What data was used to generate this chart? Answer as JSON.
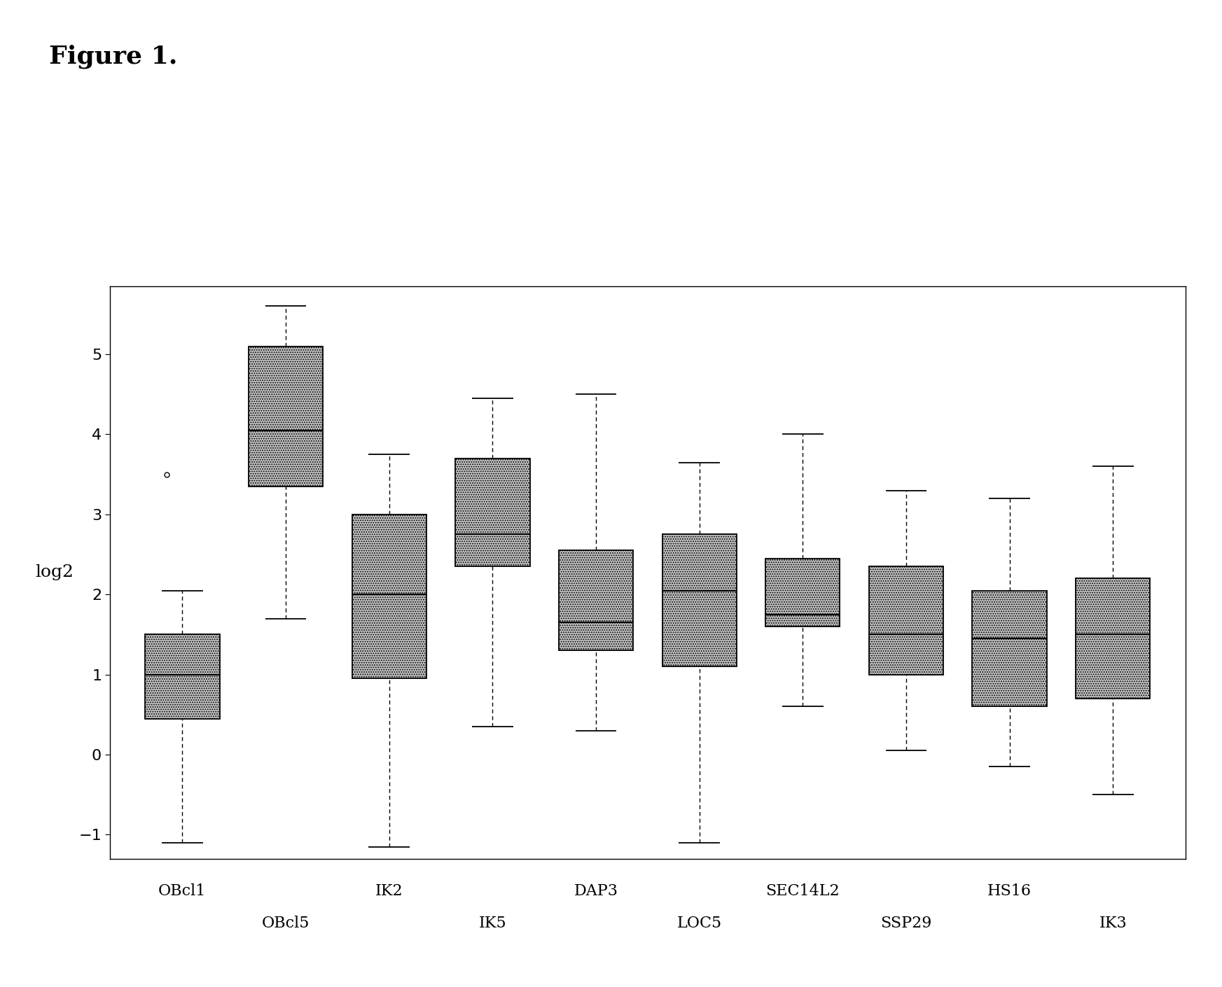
{
  "title": "Figure 1.",
  "ylabel": "log2",
  "ylim": [
    -1.3,
    5.85
  ],
  "yticks": [
    -1,
    0,
    1,
    2,
    3,
    4,
    5
  ],
  "boxes": [
    {
      "name": "OBcl1",
      "whisker_low": -1.1,
      "q1": 0.45,
      "median": 1.0,
      "q3": 1.5,
      "whisker_high": 2.05,
      "outliers": [
        3.5
      ]
    },
    {
      "name": "OBcl5",
      "whisker_low": 1.7,
      "q1": 3.35,
      "median": 4.05,
      "q3": 5.1,
      "whisker_high": 5.6,
      "outliers": []
    },
    {
      "name": "IK2",
      "whisker_low": -1.15,
      "q1": 0.95,
      "median": 2.0,
      "q3": 3.0,
      "whisker_high": 3.75,
      "outliers": []
    },
    {
      "name": "IK5",
      "whisker_low": 0.35,
      "q1": 2.35,
      "median": 2.75,
      "q3": 3.7,
      "whisker_high": 4.45,
      "outliers": []
    },
    {
      "name": "DAP3",
      "whisker_low": 0.3,
      "q1": 1.3,
      "median": 1.65,
      "q3": 2.55,
      "whisker_high": 4.5,
      "outliers": []
    },
    {
      "name": "LOC5",
      "whisker_low": -1.1,
      "q1": 1.1,
      "median": 2.05,
      "q3": 2.75,
      "whisker_high": 3.65,
      "outliers": []
    },
    {
      "name": "SEC14L2",
      "whisker_low": 0.6,
      "q1": 1.6,
      "median": 1.75,
      "q3": 2.45,
      "whisker_high": 4.0,
      "outliers": []
    },
    {
      "name": "SSP29",
      "whisker_low": 0.05,
      "q1": 1.0,
      "median": 1.5,
      "q3": 2.35,
      "whisker_high": 3.3,
      "outliers": []
    },
    {
      "name": "HS16",
      "whisker_low": -0.15,
      "q1": 0.6,
      "median": 1.45,
      "q3": 2.05,
      "whisker_high": 3.2,
      "outliers": []
    },
    {
      "name": "IK3",
      "whisker_low": -0.5,
      "q1": 0.7,
      "median": 1.5,
      "q3": 2.2,
      "whisker_high": 3.6,
      "outliers": []
    }
  ],
  "row1_labels": [
    "OBcl1",
    "IK2",
    "DAP3",
    "SEC14L2",
    "HS16"
  ],
  "row1_positions": [
    1,
    3,
    5,
    7,
    9
  ],
  "row2_labels": [
    "OBcl5",
    "IK5",
    "LOC5",
    "SSP29",
    "IK3"
  ],
  "row2_positions": [
    2,
    4,
    6,
    8,
    10
  ],
  "box_facecolor": "#c8c8c8",
  "box_edgecolor": "#000000",
  "median_color": "#000000",
  "whisker_color": "#000000",
  "outlier_color": "#000000",
  "background_color": "#ffffff",
  "figure_background": "#ffffff",
  "hatch_pattern": ".....",
  "title_fontsize": 26,
  "ylabel_fontsize": 18,
  "tick_fontsize": 16,
  "xlabel_fontsize": 16
}
